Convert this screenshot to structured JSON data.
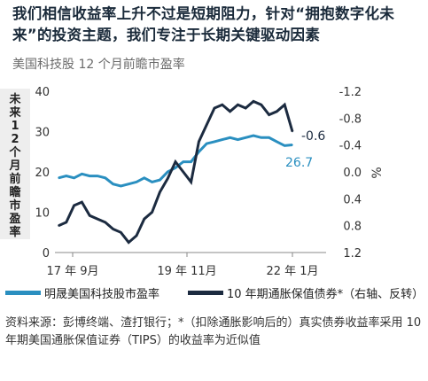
{
  "title": "我们相信收益率上升不过是短期阻力，针对“拥抱数字化未来”的投资主题，我们专注于长期关键驱动因素",
  "subtitle": "美国科技股 12 个月前瞻市盈率",
  "footnote": "资料来源：彭博终端、渣打银行；*（扣除通胀影响后的）真实债券收益率采用 10 年期美国通胀保值证券（TIPS）的收益率为近似值",
  "chart_data": {
    "type": "line",
    "ylabel_left": "未来 12 个月前瞻市盈率",
    "ylabel_right": "%",
    "x_ticks": [
      "17 年 9月",
      "19 年 11月",
      "22 年 1月"
    ],
    "y_left_ticks": [
      "0",
      "10",
      "20",
      "30",
      "40"
    ],
    "y_left_range": [
      0,
      40
    ],
    "y_right_ticks": [
      "-1.2",
      "-0.8",
      "-0.4",
      "0.0",
      "0.4",
      "0.8",
      "1.2"
    ],
    "y_right_range": [
      1.2,
      -1.2
    ],
    "y_right_inverted": true,
    "series": [
      {
        "name": "明晟美国科技股市盈率",
        "axis": "left",
        "color": "#2a8fc0",
        "end_label": "26.7",
        "values": [
          18.5,
          19.0,
          18.5,
          19.5,
          19.0,
          19.0,
          18.5,
          17.0,
          16.5,
          17.0,
          17.5,
          18.5,
          17.5,
          18.0,
          20.0,
          21.0,
          22.5,
          22.5,
          25.0,
          27.0,
          27.5,
          28.0,
          28.5,
          28.0,
          28.5,
          29.0,
          28.5,
          28.5,
          27.5,
          26.5,
          26.7
        ]
      },
      {
        "name": "10 年期通胀保值债券*（右轴、反转）",
        "axis": "right",
        "color": "#1c2b40",
        "end_label": "-0.6",
        "values": [
          0.8,
          0.75,
          0.5,
          0.45,
          0.65,
          0.7,
          0.75,
          0.85,
          0.9,
          1.05,
          0.95,
          0.7,
          0.6,
          0.3,
          0.1,
          -0.15,
          0.0,
          0.15,
          -0.45,
          -0.7,
          -0.95,
          -1.0,
          -0.9,
          -1.0,
          -0.95,
          -1.05,
          -1.0,
          -0.85,
          -0.9,
          -1.0,
          -0.6
        ]
      }
    ],
    "grid": false,
    "legend_position": "bottom"
  }
}
